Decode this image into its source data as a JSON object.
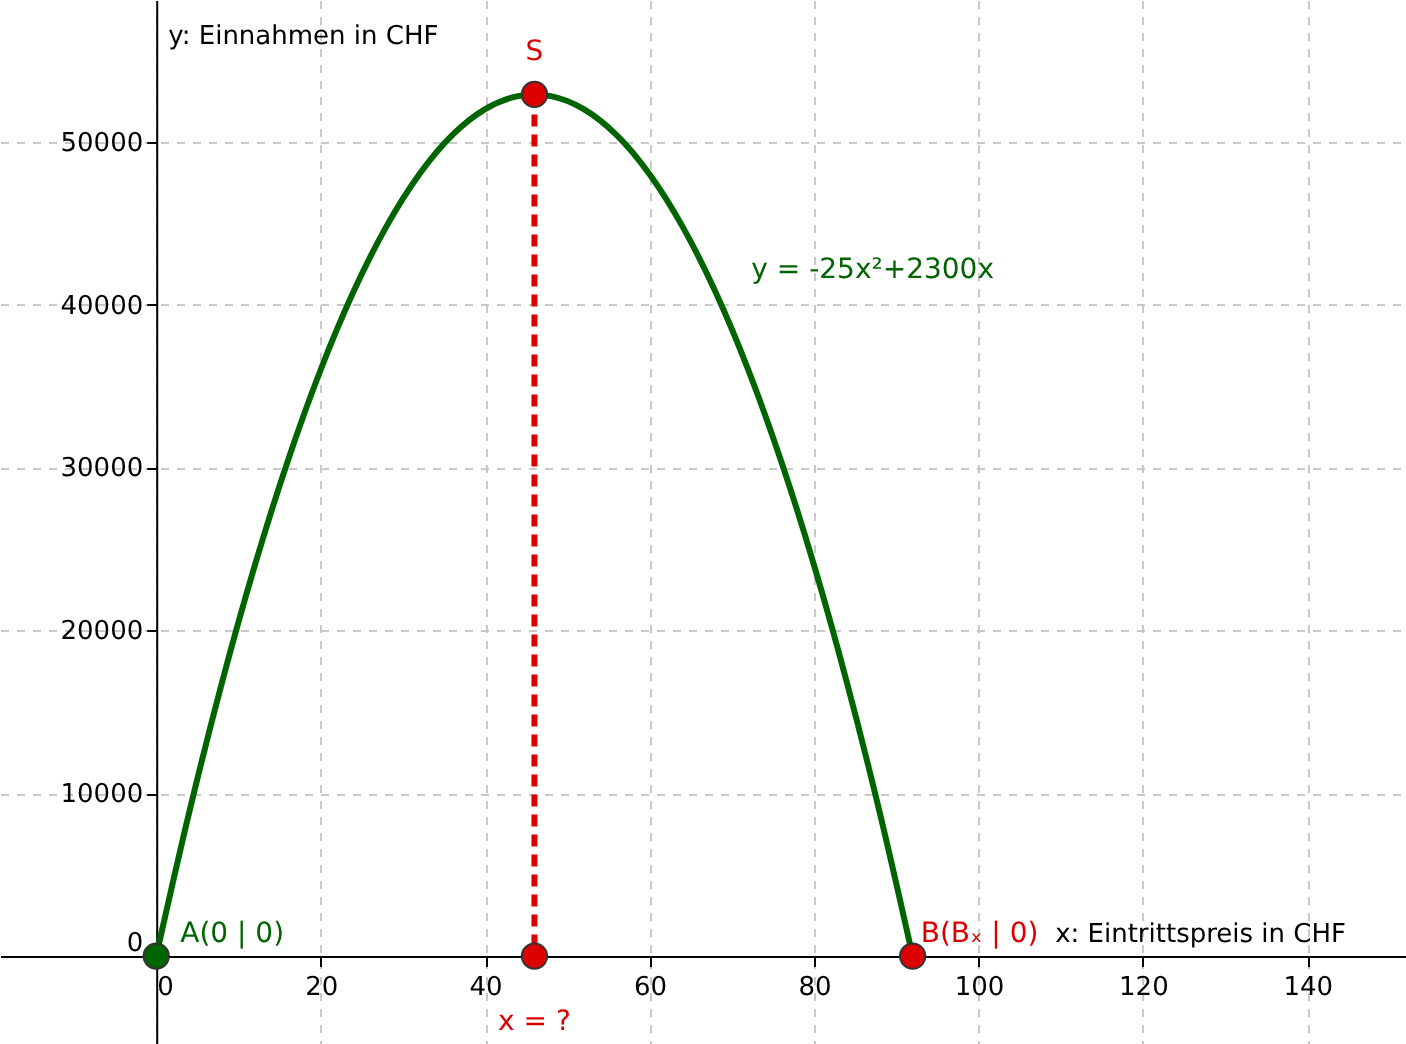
{
  "chart_data": {
    "type": "line",
    "xlabel": "x: Eintrittspreis in CHF",
    "ylabel": "y: Einnahmen in CHF",
    "xlim": [
      -19,
      152
    ],
    "ylim": [
      -5400,
      58700
    ],
    "xticks": [
      0,
      20,
      40,
      60,
      80,
      100,
      120,
      140
    ],
    "yticks": [
      0,
      10000,
      20000,
      30000,
      40000,
      50000
    ],
    "grid": true,
    "series": [
      {
        "color": "#006400",
        "line_style": "solid",
        "x": [
          0,
          4,
          8,
          12,
          16,
          20,
          24,
          28,
          32,
          36,
          40,
          44,
          46,
          48,
          52,
          56,
          60,
          64,
          68,
          72,
          76,
          80,
          84,
          88,
          92
        ],
        "values": [
          0,
          8800,
          16800,
          24000,
          30400,
          36000,
          40800,
          44800,
          48000,
          50400,
          52000,
          52800,
          52900,
          52800,
          52000,
          50400,
          48000,
          44800,
          40800,
          36000,
          30400,
          24000,
          16800,
          8800,
          0
        ]
      },
      {
        "type": "line",
        "color": "#dd0000",
        "line_style": "dashed",
        "x": [
          46,
          46
        ],
        "values": [
          52900,
          0
        ]
      },
      {
        "type": "scatter",
        "marker": "circle",
        "x": [
          0,
          46,
          46,
          92
        ],
        "values": [
          0,
          52900,
          0,
          0
        ],
        "colors": [
          "#006400",
          "#dd0000",
          "#dd0000",
          "#dd0000"
        ]
      }
    ],
    "annotations": [
      {
        "text": "S",
        "x": 46,
        "y": 52900
      },
      {
        "text": "A(0 | 0)",
        "x": 0,
        "y": 0
      },
      {
        "text": "B(Bₓ | 0)",
        "x": 92,
        "y": 0
      },
      {
        "text": "x = ?",
        "x": 46,
        "y": 0
      },
      "y = -25x²+2300x"
    ]
  }
}
